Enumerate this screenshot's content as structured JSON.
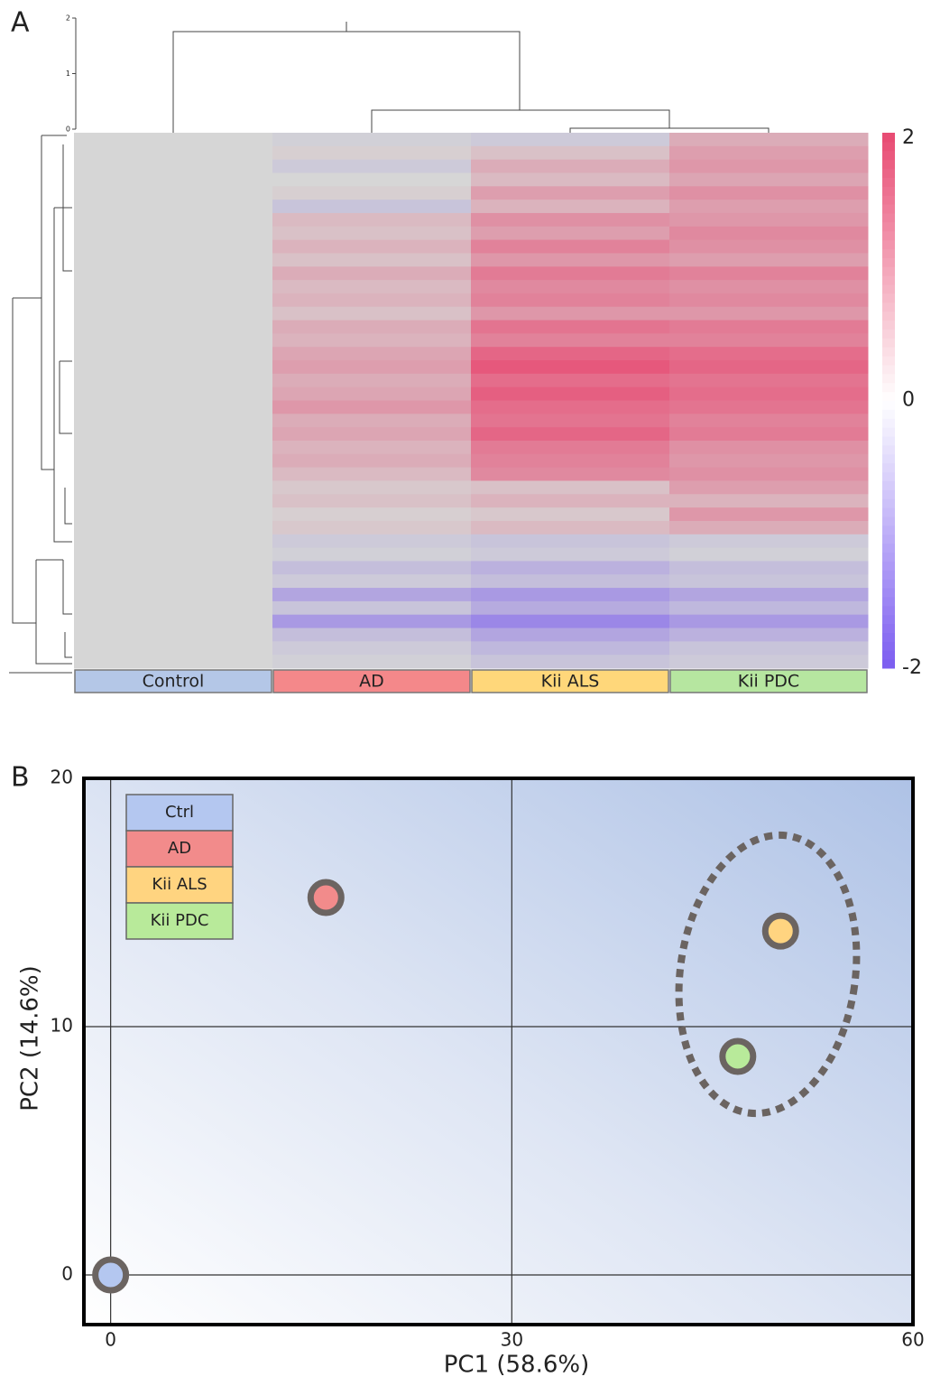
{
  "chart_data": [
    {
      "type": "heatmap",
      "panel": "A",
      "series": [
        {
          "name": "Control",
          "color": "#b4c7e7",
          "values": [
            0,
            0,
            0,
            0,
            0,
            0,
            0,
            0,
            0,
            0,
            0,
            0,
            0,
            0,
            0,
            0,
            0,
            0,
            0,
            0,
            0,
            0,
            0,
            0,
            0,
            0,
            0,
            0,
            0,
            0,
            0,
            0,
            0,
            0,
            0,
            0,
            0,
            0,
            0,
            0
          ]
        },
        {
          "name": "AD",
          "color": "#f4888a",
          "values": [
            -0.1,
            0.1,
            -0.2,
            0.0,
            0.1,
            -0.3,
            0.4,
            0.3,
            0.5,
            0.3,
            0.6,
            0.4,
            0.5,
            0.3,
            0.6,
            0.5,
            0.7,
            0.8,
            0.6,
            0.7,
            0.9,
            0.6,
            0.7,
            0.5,
            0.6,
            0.4,
            0.2,
            0.3,
            0.1,
            0.2,
            -0.2,
            -0.1,
            -0.4,
            -0.2,
            -0.8,
            -0.3,
            -1.0,
            -0.4,
            -0.2,
            -0.1
          ]
        },
        {
          "name": "Kii ALS",
          "color": "#ffd77a",
          "values": [
            -0.2,
            0.3,
            0.6,
            0.4,
            0.8,
            0.5,
            1.0,
            0.8,
            1.2,
            0.9,
            1.3,
            1.1,
            1.2,
            0.9,
            1.4,
            1.2,
            1.6,
            1.8,
            1.5,
            1.7,
            1.5,
            1.4,
            1.6,
            1.3,
            1.2,
            1.1,
            0.3,
            0.5,
            0.2,
            0.4,
            -0.3,
            -0.2,
            -0.6,
            -0.4,
            -1.0,
            -0.7,
            -1.3,
            -0.8,
            -0.5,
            -0.3
          ]
        },
        {
          "name": "Kii PDC",
          "color": "#b6e6a0",
          "values": [
            0.6,
            0.8,
            0.9,
            0.7,
            1.0,
            0.8,
            0.9,
            1.1,
            1.0,
            0.8,
            1.2,
            1.0,
            1.1,
            0.9,
            1.3,
            1.2,
            1.5,
            1.6,
            1.4,
            1.5,
            1.4,
            1.2,
            1.3,
            1.0,
            0.9,
            1.0,
            0.8,
            0.5,
            0.9,
            0.6,
            -0.2,
            -0.1,
            -0.4,
            -0.3,
            -0.8,
            -0.5,
            -1.0,
            -0.6,
            -0.3,
            -0.2
          ]
        }
      ],
      "clim": [
        -2,
        2
      ],
      "cticks": [
        2,
        0,
        -2
      ],
      "colormap": [
        "#7b5cf0",
        "#d6d6d6",
        "#e84a72"
      ],
      "dendrogram_ylim": [
        0,
        2
      ],
      "dendrogram_yticks": [
        0,
        1,
        2
      ]
    },
    {
      "type": "scatter",
      "panel": "B",
      "x_label": "PC1 (58.6%)",
      "y_label": "PC2 (14.6%)",
      "xlim": [
        -2,
        60
      ],
      "ylim": [
        -2,
        20
      ],
      "xticks": [
        0,
        30,
        60
      ],
      "yticks": [
        0,
        10,
        20
      ],
      "grid": true,
      "series": [
        {
          "name": "Ctrl",
          "color": "#b4c7f0",
          "x": [
            0
          ],
          "values": [
            0
          ]
        },
        {
          "name": "AD",
          "color": "#f28b8b",
          "x": [
            16.1
          ],
          "values": [
            15.2
          ]
        },
        {
          "name": "Kii ALS",
          "color": "#ffd480",
          "x": [
            50.1
          ],
          "values": [
            13.85
          ]
        },
        {
          "name": "Kii PDC",
          "color": "#b8ea9a",
          "x": [
            46.9
          ],
          "values": [
            8.8
          ]
        }
      ]
    }
  ]
}
